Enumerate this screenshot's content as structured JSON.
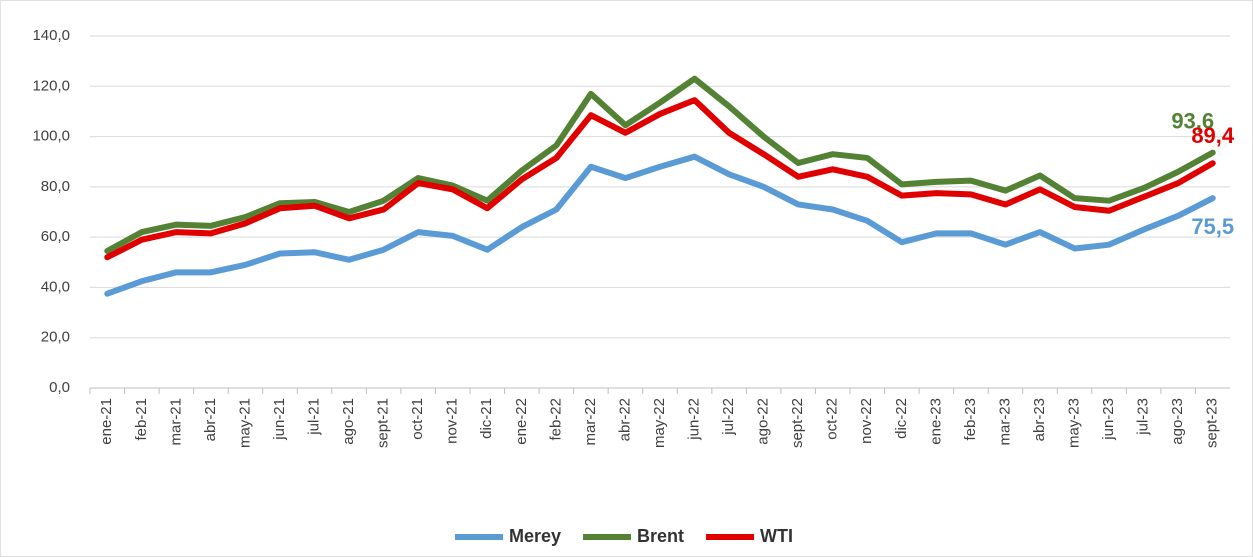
{
  "chart_data": {
    "type": "line",
    "categories": [
      "ene-21",
      "feb-21",
      "mar-21",
      "abr-21",
      "may-21",
      "jun-21",
      "jul-21",
      "ago-21",
      "sept-21",
      "oct-21",
      "nov-21",
      "dic-21",
      "ene-22",
      "feb-22",
      "mar-22",
      "abr-22",
      "may-22",
      "jun-22",
      "jul-22",
      "ago-22",
      "sept-22",
      "oct-22",
      "nov-22",
      "dic-22",
      "ene-23",
      "feb-23",
      "mar-23",
      "abr-23",
      "may-23",
      "jun-23",
      "jul-23",
      "ago-23",
      "sept-23"
    ],
    "series": [
      {
        "name": "Merey",
        "color": "#5b9bd5",
        "values": [
          37.5,
          42.5,
          46,
          46,
          49,
          53.5,
          54,
          51,
          55,
          62,
          60.5,
          55,
          64,
          71,
          88,
          83.5,
          88,
          92,
          85,
          80,
          73,
          71,
          66.5,
          58,
          61.5,
          61.5,
          57,
          62,
          55.5,
          57,
          63,
          68.5,
          75.5
        ],
        "value_labels": [
          null,
          null,
          null,
          null,
          null,
          null,
          null,
          null,
          null,
          null,
          null,
          null,
          null,
          null,
          null,
          null,
          null,
          null,
          null,
          null,
          null,
          null,
          null,
          null,
          null,
          null,
          null,
          null,
          null,
          null,
          null,
          null,
          "75,5"
        ]
      },
      {
        "name": "Brent",
        "color": "#548235",
        "values": [
          54.5,
          62,
          65,
          64.5,
          68,
          73.5,
          74,
          70,
          74.5,
          83.5,
          80.5,
          74.5,
          86.5,
          96.5,
          117,
          104.5,
          113.5,
          123,
          112,
          100,
          89.5,
          93,
          91.5,
          81,
          82,
          82.5,
          78.5,
          84.5,
          75.5,
          74.5,
          79.5,
          86,
          93.6
        ],
        "value_labels": [
          null,
          null,
          null,
          null,
          null,
          null,
          null,
          null,
          null,
          null,
          null,
          null,
          null,
          null,
          null,
          null,
          null,
          null,
          null,
          null,
          null,
          null,
          null,
          null,
          null,
          null,
          null,
          null,
          null,
          null,
          null,
          null,
          "93,6"
        ]
      },
      {
        "name": "WTI",
        "color": "#e00000",
        "values": [
          52,
          59,
          62,
          61.5,
          65.5,
          71.5,
          72.5,
          67.5,
          71,
          81.5,
          79,
          71.5,
          83,
          91.5,
          108.5,
          101.5,
          109,
          114.5,
          101.5,
          93,
          84,
          87,
          84,
          76.5,
          77.5,
          77,
          73,
          79,
          72,
          70.5,
          76,
          81.5,
          89.4
        ],
        "value_labels": [
          null,
          null,
          null,
          null,
          null,
          null,
          null,
          null,
          null,
          null,
          null,
          null,
          null,
          null,
          null,
          null,
          null,
          null,
          null,
          null,
          null,
          null,
          null,
          null,
          null,
          null,
          null,
          null,
          null,
          null,
          null,
          null,
          "89,4"
        ]
      }
    ],
    "ylim": [
      0,
      140
    ],
    "yticks": [
      {
        "value": 0,
        "label": "0,0"
      },
      {
        "value": 20,
        "label": "20,0"
      },
      {
        "value": 40,
        "label": "40,0"
      },
      {
        "value": 60,
        "label": "60,0"
      },
      {
        "value": 80,
        "label": "80,0"
      },
      {
        "value": 100,
        "label": "100,0"
      },
      {
        "value": 120,
        "label": "120,0"
      },
      {
        "value": 140,
        "label": "140,0"
      }
    ],
    "grid": true,
    "legend": "bottom"
  }
}
